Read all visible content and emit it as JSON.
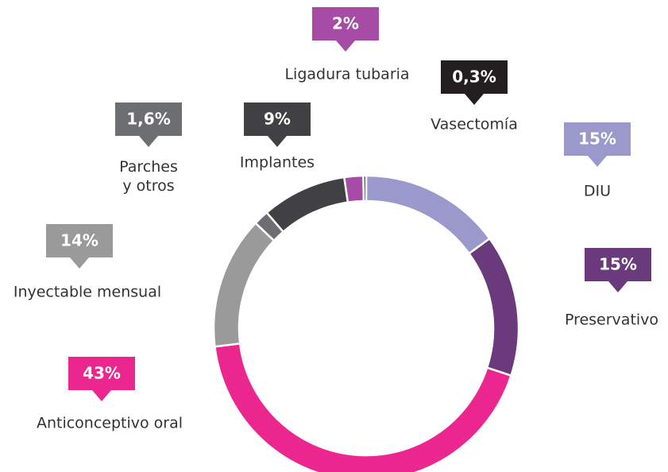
{
  "chart_data": {
    "type": "donut",
    "categories": [
      "DIU",
      "Preservativo",
      "Anticonceptivo oral",
      "Inyectable mensual",
      "Parches\ny otros",
      "Implantes",
      "Ligadura tubaria",
      "Vasectomía"
    ],
    "values": [
      15,
      15,
      43,
      14,
      1.6,
      9,
      2,
      0.3
    ],
    "value_labels": [
      "15%",
      "15%",
      "43%",
      "14%",
      "1,6%",
      "9%",
      "2%",
      "0,3%"
    ],
    "colors": [
      "#9b99cc",
      "#6b3a7d",
      "#ec268f",
      "#9a9a9a",
      "#6d6e71",
      "#414042",
      "#a64ca6",
      "#231f20"
    ]
  }
}
